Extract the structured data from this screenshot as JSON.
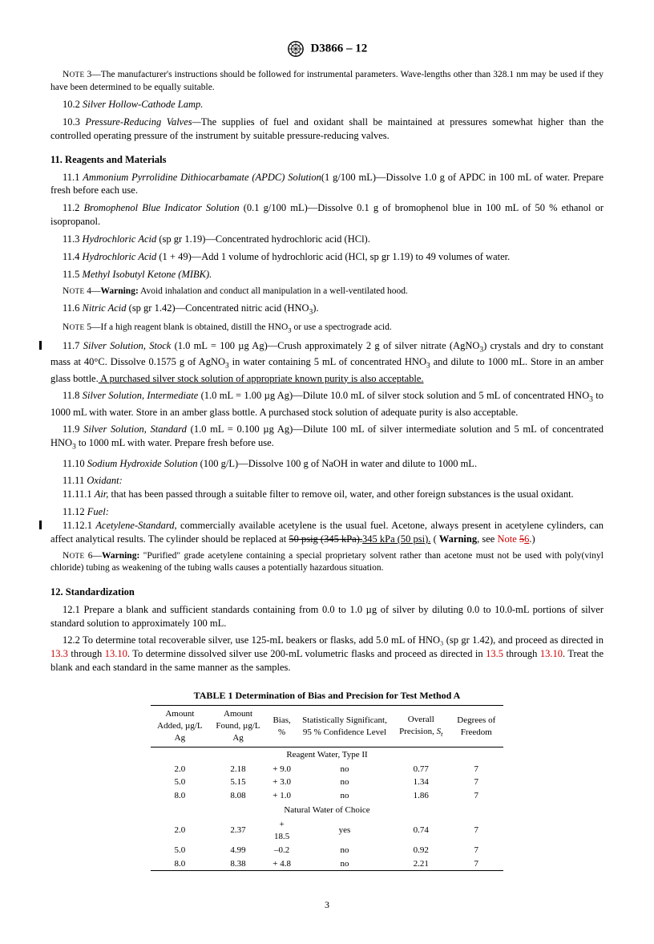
{
  "header": {
    "standard": "D3866 – 12"
  },
  "notes": {
    "n3": "NOTE 3—The manufacturer's instructions should be followed for instrumental parameters. Wave-lengths other than 328.1 nm may be used if they have been determined to be equally suitable.",
    "n4": "NOTE 4—Warning: Avoid inhalation and conduct all manipulation in a well-ventilated hood.",
    "n5": "NOTE 5—If a high reagent blank is obtained, distill the HNO₃ or use a spectrograde acid.",
    "n6": "NOTE 6—Warning: \"Purified\" grade acetylene containing a special proprietary solvent rather than acetone must not be used with poly(vinyl chloride) tubing as weakening of the tubing walls causes a potentially hazardous situation."
  },
  "s10": {
    "p2_num": "10.2",
    "p2_title": "Silver Hollow-Cathode Lamp.",
    "p3_num": "10.3",
    "p3_title": "Pressure-Reducing Valves—",
    "p3_text": "The supplies of fuel and oxidant shall be maintained at pressures somewhat higher than the controlled operating pressure of the instrument by suitable pressure-reducing valves."
  },
  "s11": {
    "heading": "11. Reagents and Materials",
    "p1_num": "11.1",
    "p1_title": "Ammonium Pyrrolidine Dithiocarbamate (APDC) Solution",
    "p1_text": "(1 g/100 mL)—Dissolve 1.0 g of APDC in 100 mL of water. Prepare fresh before each use.",
    "p2_num": "11.2",
    "p2_title": "Bromophenol Blue Indicator Solution ",
    "p2_text": "(0.1 g/100 mL)—Dissolve 0.1 g of bromophenol blue in 100 mL of 50 % ethanol or isopropanol.",
    "p3_num": "11.3",
    "p3_title": "Hydrochloric Acid ",
    "p3_text": "(sp gr 1.19)—Concentrated hydrochloric acid (HCl).",
    "p4_num": "11.4",
    "p4_title": "Hydrochloric Acid ",
    "p4_text": "(1 + 49)—Add 1 volume of hydrochloric acid (HCl, sp gr 1.19) to 49 volumes of water.",
    "p5_num": "11.5",
    "p5_title": "Methyl Isobutyl Ketone (MIBK).",
    "p6_num": "11.6",
    "p6_title": "Nitric Acid ",
    "p6_text": "(sp gr 1.42)—Concentrated nitric acid (HNO₃).",
    "p7_num": "11.7",
    "p7_title": "Silver Solution, Stock ",
    "p7_text_a": "(1.0 mL = 100 µg Ag)—Crush approximately 2 g of silver nitrate (AgNO₃) crystals and dry to constant mass at 40°C. Dissolve 0.1575 g of AgNO₃ in water containing 5 mL of concentrated HNO₃ and dilute to 1000 mL. Store in an amber glass bottle.",
    "p7_text_b": " A purchased silver stock solution of appropriate known purity is also acceptable.",
    "p8_num": "11.8",
    "p8_title": "Silver Solution, Intermediate ",
    "p8_text": "(1.0 mL = 1.00 µg Ag)—Dilute 10.0 mL of silver stock solution and 5 mL of concentrated HNO₃ to 1000 mL with water. Store in an amber glass bottle. A purchased stock solution of adequate purity is also acceptable.",
    "p9_num": "11.9",
    "p9_title": "Silver Solution, Standard ",
    "p9_text": "(1.0 mL = 0.100 µg Ag)—Dilute 100 mL of silver intermediate solution and 5 mL of concentrated HNO₃ to 1000 mL with water. Prepare fresh before use.",
    "p10_num": "11.10",
    "p10_title": "Sodium Hydroxide Solution ",
    "p10_text": "(100 g/L)—Dissolve 100 g of NaOH in water and dilute to 1000 mL.",
    "p11_num": "11.11",
    "p11_title": "Oxidant:",
    "p11_1_num": "11.11.1",
    "p11_1_title": "Air, ",
    "p11_1_text": "that has been passed through a suitable filter to remove oil, water, and other foreign substances is the usual oxidant.",
    "p12_num": "11.12",
    "p12_title": "Fuel:",
    "p12_1_num": "11.12.1",
    "p12_1_title": "Acetylene-Standard, ",
    "p12_1_text_a": "commercially available acetylene is the usual fuel. Acetone, always present in acetylene cylinders, can affect analytical results. The cylinder should be replaced at ",
    "p12_1_strike": "50 psig (345 kPa).",
    "p12_1_under": "345 kPa (50 psi).",
    "p12_1_text_b": " ( ",
    "p12_1_warn": "Warning",
    "p12_1_text_c": ", see ",
    "p12_1_red": "Note 5",
    "p12_1_under2": "6",
    "p12_1_text_d": ".)"
  },
  "s12": {
    "heading": "12. Standardization",
    "p1": "12.1  Prepare a blank and sufficient standards containing from 0.0 to 1.0 µg of silver by diluting 0.0 to 10.0-mL portions of silver standard solution to approximately 100 mL.",
    "p2_a": "12.2  To determine total recoverable silver, use 125-mL beakers or flasks, add 5.0 mL of HNO₃  (sp gr 1.42), and proceed as directed in ",
    "p2_r1": "13.3",
    "p2_b": " through ",
    "p2_r2": "13.10",
    "p2_c": ". To determine dissolved silver use 200-mL volumetric flasks and proceed as directed in ",
    "p2_r3": "13.5",
    "p2_d": " through ",
    "p2_r4": "13.10",
    "p2_e": ". Treat the blank and each standard in the same manner as the samples."
  },
  "table": {
    "title": "TABLE 1 Determination of Bias and Precision for Test Method A",
    "headers": [
      "Amount Added, µg/L Ag",
      "Amount Found, µg/L Ag",
      "Bias, %",
      "Statistically Significant, 95 % Confidence Level",
      "Overall Precision, Sₜ",
      "Degrees of Freedom"
    ],
    "section1": "Reagent Water, Type II",
    "rows1": [
      [
        "2.0",
        "2.18",
        "+ 9.0",
        "no",
        "0.77",
        "7"
      ],
      [
        "5.0",
        "5.15",
        "+ 3.0",
        "no",
        "1.34",
        "7"
      ],
      [
        "8.0",
        "8.08",
        "+ 1.0",
        "no",
        "1.86",
        "7"
      ]
    ],
    "section2": "Natural Water of Choice",
    "rows2": [
      [
        "2.0",
        "2.37",
        "+ 18.5",
        "yes",
        "0.74",
        "7"
      ],
      [
        "5.0",
        "4.99",
        "–0.2",
        "no",
        "0.92",
        "7"
      ],
      [
        "8.0",
        "8.38",
        "+ 4.8",
        "no",
        "2.21",
        "7"
      ]
    ]
  },
  "pagenum": "3"
}
